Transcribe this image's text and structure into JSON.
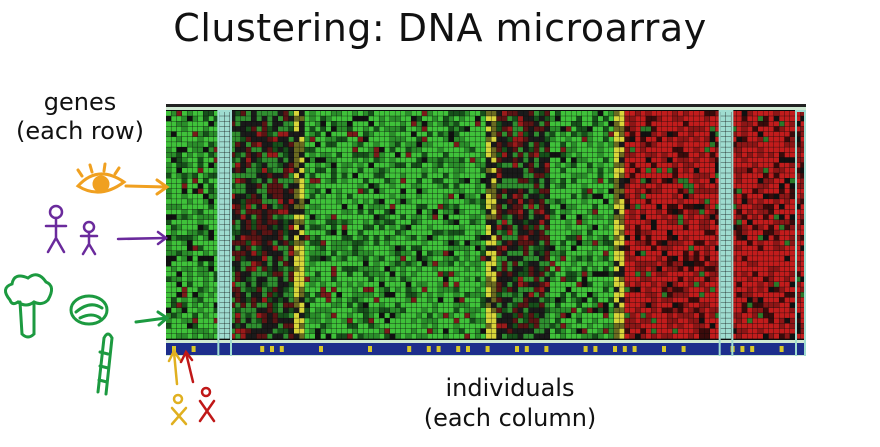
{
  "title": "Clustering: DNA microarray",
  "left_label": {
    "line1": "genes",
    "line2": "(each row)"
  },
  "bottom_label": {
    "line1": "individuals",
    "line2": "(each column)"
  },
  "colors": {
    "green_bright": "#3fc23a",
    "green_dark": "#16501a",
    "red_bright": "#c21c1c",
    "red_dark": "#3a0b0b",
    "gap_yellow": "#d8d53a",
    "strip_blue": "#1d2e8c",
    "strip_yellow": "#d9c82a",
    "separator": "#9fdcd0",
    "eye_arrow": "#f0a020",
    "people": "#6a2a9c",
    "vegetables": "#1c9a40",
    "yellow_person": "#e0b020",
    "red_person": "#c01818"
  },
  "chart_data": {
    "type": "heatmap",
    "title": "",
    "xlabel": "individuals (each column)",
    "ylabel": "genes (each row)",
    "rows": 44,
    "columns": 120,
    "column_blocks": [
      {
        "cols": 10,
        "pattern": "green"
      },
      {
        "cols": 2,
        "pattern": "separator"
      },
      {
        "cols": 12,
        "pattern": "dark-red-green"
      },
      {
        "cols": 2,
        "pattern": "yellow-gap"
      },
      {
        "cols": 34,
        "pattern": "green"
      },
      {
        "cols": 2,
        "pattern": "yellow-gap"
      },
      {
        "cols": 10,
        "pattern": "dark-red-green"
      },
      {
        "cols": 12,
        "pattern": "green"
      },
      {
        "cols": 2,
        "pattern": "yellow-gap"
      },
      {
        "cols": 18,
        "pattern": "red"
      },
      {
        "cols": 2,
        "pattern": "separator"
      },
      {
        "cols": 14,
        "pattern": "red"
      }
    ]
  }
}
